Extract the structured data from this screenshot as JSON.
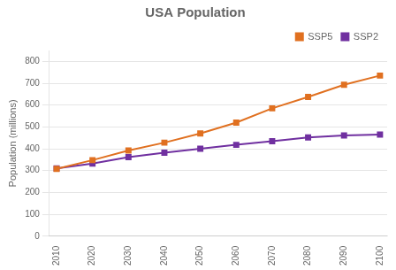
{
  "chart_data": {
    "type": "line",
    "title": "USA Population",
    "ylabel": "Population (millions)",
    "x": [
      2010,
      2020,
      2030,
      2040,
      2050,
      2060,
      2070,
      2080,
      2090,
      2100
    ],
    "series": [
      {
        "name": "SSP5",
        "color": "#E07020",
        "marker": "square",
        "values": [
          308,
          348,
          392,
          428,
          470,
          520,
          585,
          637,
          693,
          735
        ]
      },
      {
        "name": "SSP2",
        "color": "#7030A0",
        "marker": "square",
        "values": [
          310,
          332,
          362,
          382,
          400,
          418,
          435,
          452,
          461,
          465
        ]
      }
    ],
    "xlim": [
      2008,
      2102
    ],
    "xticks": [
      2010,
      2020,
      2030,
      2040,
      2050,
      2060,
      2070,
      2080,
      2090,
      2100
    ],
    "ylim": [
      0,
      850
    ],
    "yticks": [
      0,
      100,
      200,
      300,
      400,
      500,
      600,
      700,
      800
    ],
    "grid": "y",
    "legend": "upper right"
  }
}
